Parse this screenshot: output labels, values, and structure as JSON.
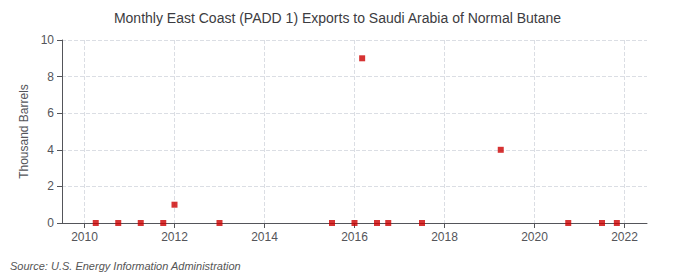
{
  "chart_data": {
    "type": "scatter",
    "title": "Monthly East Coast (PADD 1) Exports to Saudi Arabia of Normal Butane",
    "ylabel": "Thousand Barrels",
    "annotations": [
      "Source: U.S. Energy Information Administration"
    ],
    "x": [
      2010.25,
      2010.75,
      2011.25,
      2011.75,
      2012.0,
      2013.0,
      2015.5,
      2016.0,
      2016.17,
      2016.5,
      2016.75,
      2017.5,
      2019.25,
      2020.75,
      2021.5,
      2021.83
    ],
    "values": [
      0.0,
      0.0,
      0.0,
      0.0,
      1.0,
      0.0,
      0.0,
      0.0,
      9.0,
      0.0,
      0.0,
      0.0,
      4.0,
      0.0,
      0.0,
      0.0
    ],
    "color": "#cc0000",
    "marker": "square",
    "xlim": [
      2009.5,
      2022.5
    ],
    "xticks": [
      2010,
      2012,
      2014,
      2016,
      2018,
      2020,
      2022
    ],
    "ylim": [
      0,
      10
    ],
    "yticks": [
      0,
      2,
      4,
      6,
      8,
      10
    ],
    "grid": true
  }
}
